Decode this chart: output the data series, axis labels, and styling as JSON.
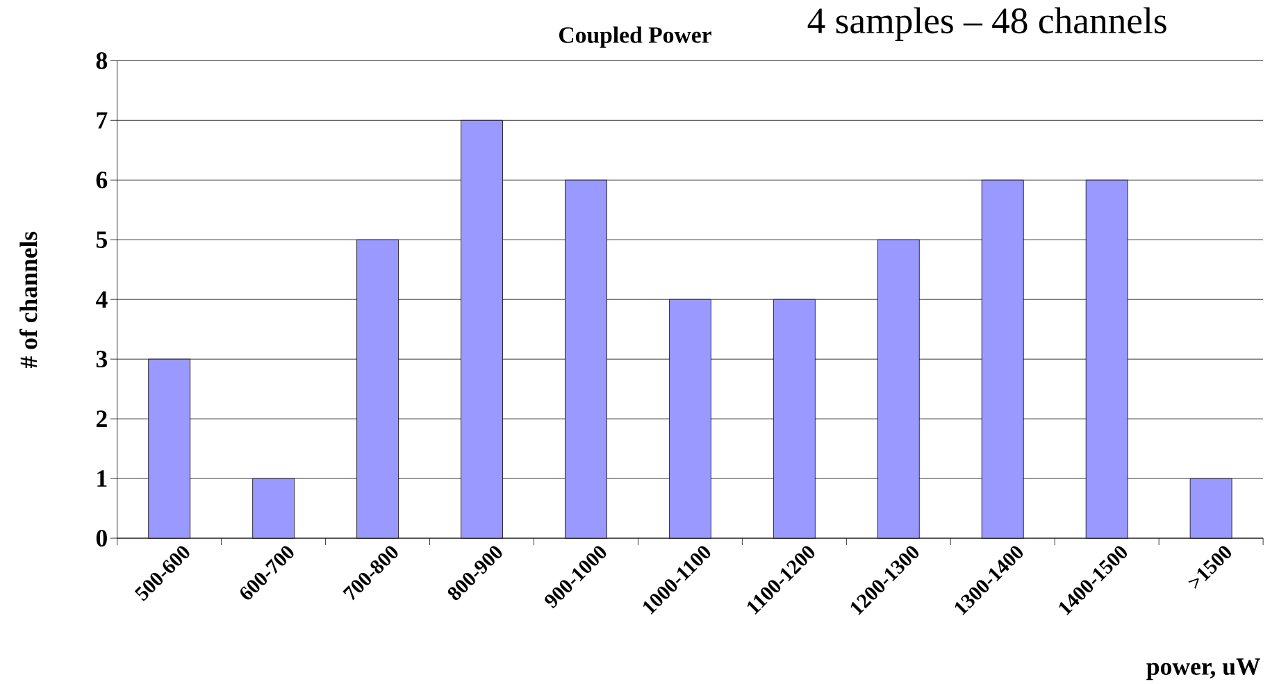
{
  "chart_data": {
    "type": "bar",
    "title": "Coupled Power",
    "subtitle": "4 samples – 48 channels",
    "xlabel": "power, uW",
    "ylabel": "# of channels",
    "categories": [
      "500-600",
      "600-700",
      "700-800",
      "800-900",
      "900-1000",
      "1000-1100",
      "1100-1200",
      "1200-1300",
      "1300-1400",
      "1400-1500",
      ">1500"
    ],
    "values": [
      3,
      1,
      5,
      7,
      6,
      4,
      4,
      5,
      6,
      6,
      1
    ],
    "color": "#9999ff",
    "ylim": [
      0,
      8
    ],
    "yticks": [
      0,
      1,
      2,
      3,
      4,
      5,
      6,
      7,
      8
    ],
    "grid": "y"
  }
}
